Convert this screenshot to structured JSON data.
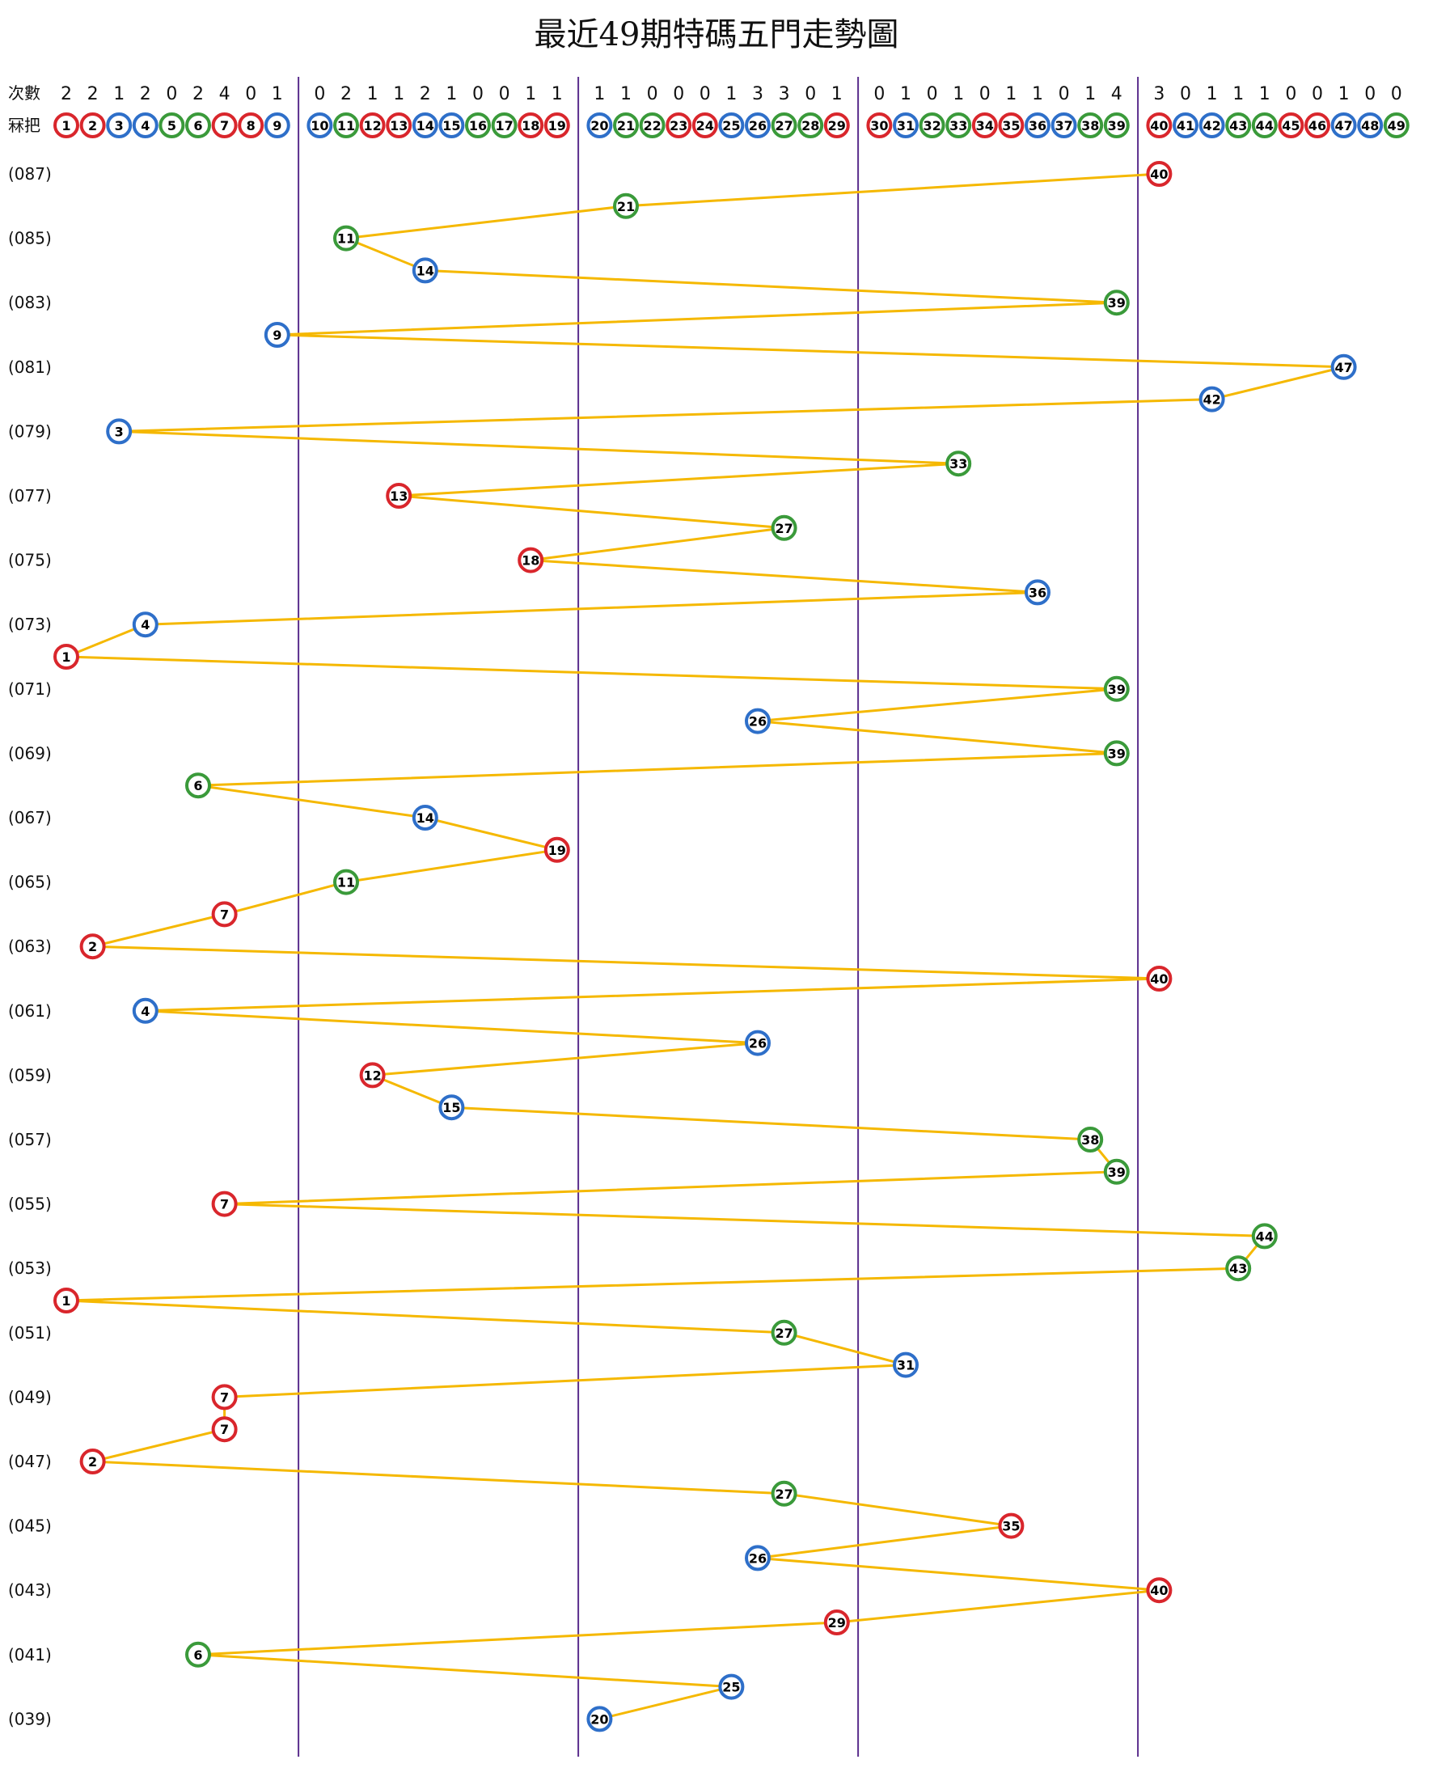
{
  "chart_data": {
    "type": "line",
    "title": "最近49期特碼五門走勢圖",
    "header": {
      "count_label": "次數",
      "number_label": "冧把"
    },
    "numbers": [
      1,
      2,
      3,
      4,
      5,
      6,
      7,
      8,
      9,
      10,
      11,
      12,
      13,
      14,
      15,
      16,
      17,
      18,
      19,
      20,
      21,
      22,
      23,
      24,
      25,
      26,
      27,
      28,
      29,
      30,
      31,
      32,
      33,
      34,
      35,
      36,
      37,
      38,
      39,
      40,
      41,
      42,
      43,
      44,
      45,
      46,
      47,
      48,
      49
    ],
    "counts": [
      2,
      2,
      1,
      2,
      0,
      2,
      4,
      0,
      1,
      0,
      2,
      1,
      1,
      2,
      1,
      0,
      0,
      1,
      1,
      1,
      1,
      0,
      0,
      0,
      1,
      3,
      3,
      0,
      1,
      0,
      1,
      0,
      1,
      0,
      1,
      1,
      0,
      1,
      4,
      3,
      0,
      1,
      1,
      1,
      0,
      0,
      1,
      0,
      0
    ],
    "ball_colors": {
      "red": "#d9262c",
      "blue": "#2e6fc9",
      "green": "#3a9a3a"
    },
    "red_numbers": [
      1,
      2,
      7,
      8,
      12,
      13,
      18,
      19,
      23,
      24,
      29,
      30,
      34,
      35,
      40,
      45,
      46
    ],
    "blue_numbers": [
      3,
      4,
      9,
      10,
      14,
      15,
      20,
      25,
      26,
      31,
      36,
      37,
      41,
      42,
      47,
      48
    ],
    "green_numbers": [
      5,
      6,
      11,
      16,
      17,
      21,
      22,
      27,
      28,
      32,
      33,
      38,
      39,
      43,
      44,
      49
    ],
    "line_color": "#f5b800",
    "divider_color": "#5a2d8c",
    "row_labels_shown": [
      "(087)",
      "(085)",
      "(083)",
      "(081)",
      "(079)",
      "(077)",
      "(075)",
      "(073)",
      "(071)",
      "(069)",
      "(067)",
      "(065)",
      "(063)",
      "(061)",
      "(059)",
      "(057)",
      "(055)",
      "(053)",
      "(051)",
      "(049)",
      "(047)",
      "(045)",
      "(043)",
      "(041)",
      "(039)"
    ],
    "draws": [
      {
        "period": "087",
        "number": 40
      },
      {
        "period": "086",
        "number": 21
      },
      {
        "period": "085",
        "number": 11
      },
      {
        "period": "084",
        "number": 14
      },
      {
        "period": "083",
        "number": 39
      },
      {
        "period": "082",
        "number": 9
      },
      {
        "period": "081",
        "number": 47
      },
      {
        "period": "080",
        "number": 42
      },
      {
        "period": "079",
        "number": 3
      },
      {
        "period": "078",
        "number": 33
      },
      {
        "period": "077",
        "number": 13
      },
      {
        "period": "076",
        "number": 27
      },
      {
        "period": "075",
        "number": 18
      },
      {
        "period": "074",
        "number": 36
      },
      {
        "period": "073",
        "number": 4
      },
      {
        "period": "072",
        "number": 1
      },
      {
        "period": "071",
        "number": 39
      },
      {
        "period": "070",
        "number": 26
      },
      {
        "period": "069",
        "number": 39
      },
      {
        "period": "068",
        "number": 6
      },
      {
        "period": "067",
        "number": 14
      },
      {
        "period": "066",
        "number": 19
      },
      {
        "period": "065",
        "number": 11
      },
      {
        "period": "064",
        "number": 7
      },
      {
        "period": "063",
        "number": 2
      },
      {
        "period": "062",
        "number": 40
      },
      {
        "period": "061",
        "number": 4
      },
      {
        "period": "060",
        "number": 26
      },
      {
        "period": "059",
        "number": 12
      },
      {
        "period": "058",
        "number": 15
      },
      {
        "period": "057",
        "number": 38
      },
      {
        "period": "056",
        "number": 39
      },
      {
        "period": "055",
        "number": 7
      },
      {
        "period": "054",
        "number": 44
      },
      {
        "period": "053",
        "number": 43
      },
      {
        "period": "052",
        "number": 1
      },
      {
        "period": "051",
        "number": 27
      },
      {
        "period": "050",
        "number": 31
      },
      {
        "period": "049",
        "number": 7
      },
      {
        "period": "048",
        "number": 7
      },
      {
        "period": "047",
        "number": 2
      },
      {
        "period": "046",
        "number": 27
      },
      {
        "period": "045",
        "number": 35
      },
      {
        "period": "044",
        "number": 26
      },
      {
        "period": "043",
        "number": 40
      },
      {
        "period": "042",
        "number": 29
      },
      {
        "period": "041",
        "number": 6
      },
      {
        "period": "040",
        "number": 25
      },
      {
        "period": "039",
        "number": 20
      }
    ]
  }
}
